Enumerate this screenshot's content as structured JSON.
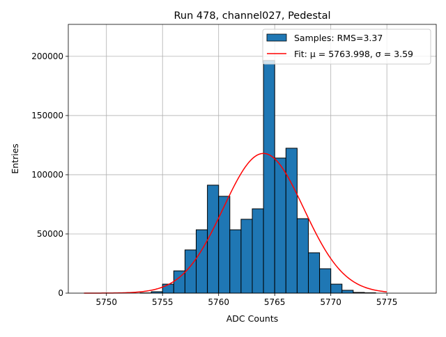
{
  "chart_data": {
    "type": "bar",
    "title": "Run 478, channel027, Pedestal",
    "xlabel": "ADC Counts",
    "ylabel": "Entries",
    "xlim": [
      5746.6,
      5779.4
    ],
    "ylim": [
      0,
      227000
    ],
    "xticks": [
      5750,
      5755,
      5760,
      5765,
      5770,
      5775
    ],
    "yticks": [
      0,
      50000,
      100000,
      150000,
      200000
    ],
    "grid": true,
    "legend_position": "top-right",
    "bin_width": 1,
    "bin_edges_start": [
      5753,
      5754,
      5755,
      5756,
      5757,
      5758,
      5759,
      5760,
      5761,
      5762,
      5763,
      5764,
      5765,
      5766,
      5767,
      5768,
      5769,
      5770,
      5771,
      5772,
      5773
    ],
    "values": [
      200,
      1200,
      7600,
      18800,
      36500,
      53500,
      91200,
      81800,
      53500,
      62400,
      71200,
      196500,
      114100,
      122400,
      62900,
      34100,
      20600,
      7600,
      2400,
      600,
      300
    ],
    "bar_color": "#1f77b4",
    "fit": {
      "mu": 5763.998,
      "sigma": 3.59,
      "amplitude": 118000,
      "x_range": [
        5748,
        5775
      ],
      "color": "#ff0000"
    },
    "legend": [
      {
        "label": "Samples: RMS=3.37"
      },
      {
        "label": "Fit: μ = 5763.998, σ = 3.59"
      }
    ]
  }
}
